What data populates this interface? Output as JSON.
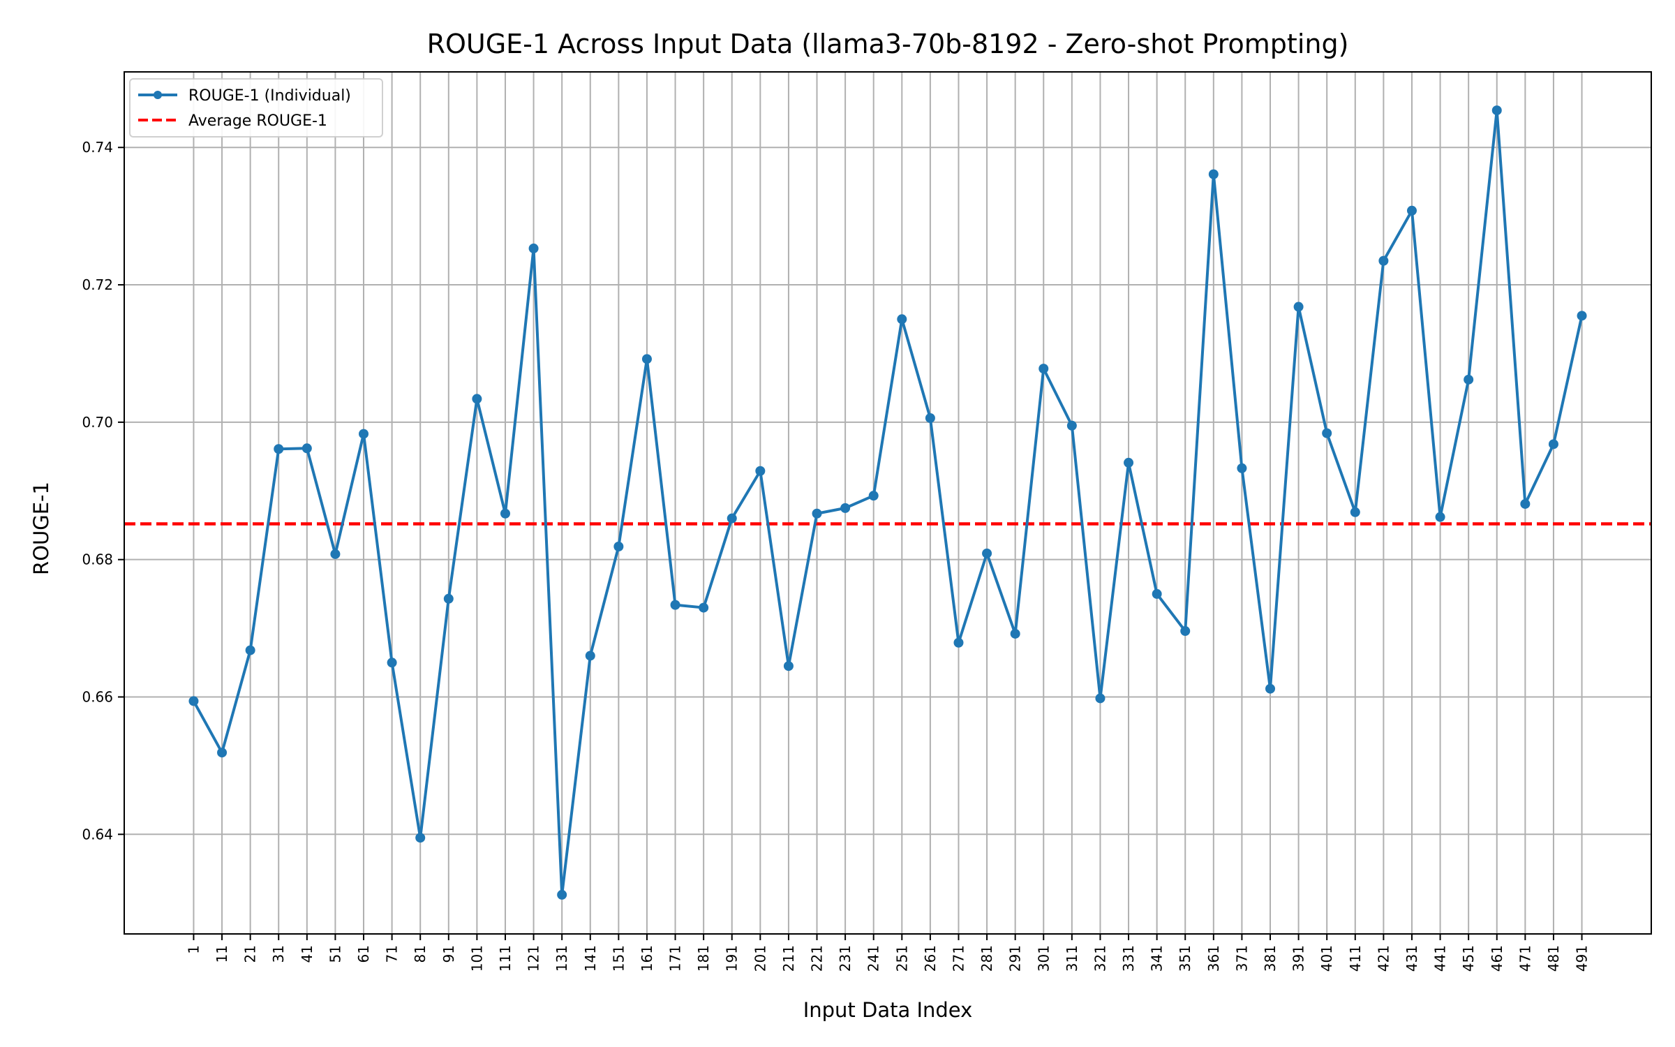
{
  "chart_data": {
    "type": "line",
    "title": "ROUGE-1 Across Input Data (llama3-70b-8192 - Zero-shot Prompting)",
    "xlabel": "Input Data Index",
    "ylabel": "ROUGE-1",
    "x": [
      1,
      11,
      21,
      31,
      41,
      51,
      61,
      71,
      81,
      91,
      101,
      111,
      121,
      131,
      141,
      151,
      161,
      171,
      181,
      191,
      201,
      211,
      221,
      231,
      241,
      251,
      261,
      271,
      281,
      291,
      301,
      311,
      321,
      331,
      341,
      351,
      361,
      371,
      381,
      391,
      401,
      411,
      421,
      431,
      441,
      451,
      461,
      471,
      481,
      491
    ],
    "xlim": [
      -23.5,
      515.5
    ],
    "ylim": [
      0.6255,
      0.751
    ],
    "yticks": [
      0.64,
      0.66,
      0.68,
      0.7,
      0.72,
      0.74
    ],
    "ytick_labels": [
      "0.64",
      "0.66",
      "0.68",
      "0.70",
      "0.72",
      "0.74"
    ],
    "grid": true,
    "legend_position": "top-left",
    "series": [
      {
        "name": "ROUGE-1 (Individual)",
        "color": "#1f77b4",
        "style": "solid-with-markers",
        "values": [
          0.6594,
          0.6519,
          0.6668,
          0.6961,
          0.6962,
          0.6808,
          0.6983,
          0.665,
          0.6395,
          0.6743,
          0.7034,
          0.6867,
          0.7253,
          0.6312,
          0.666,
          0.6819,
          0.7092,
          0.6734,
          0.673,
          0.686,
          0.6929,
          0.6645,
          0.6867,
          0.6875,
          0.6893,
          0.715,
          0.7006,
          0.6679,
          0.6809,
          0.6692,
          0.7078,
          0.6995,
          0.6598,
          0.6941,
          0.675,
          0.6696,
          0.7361,
          0.6933,
          0.6612,
          0.7168,
          0.6984,
          0.6869,
          0.7235,
          0.7308,
          0.6862,
          0.7062,
          0.7454,
          0.6881,
          0.6968,
          0.7155
        ]
      },
      {
        "name": "Average ROUGE-1",
        "color": "#ff0000",
        "style": "dashed",
        "value": 0.6852
      }
    ]
  }
}
